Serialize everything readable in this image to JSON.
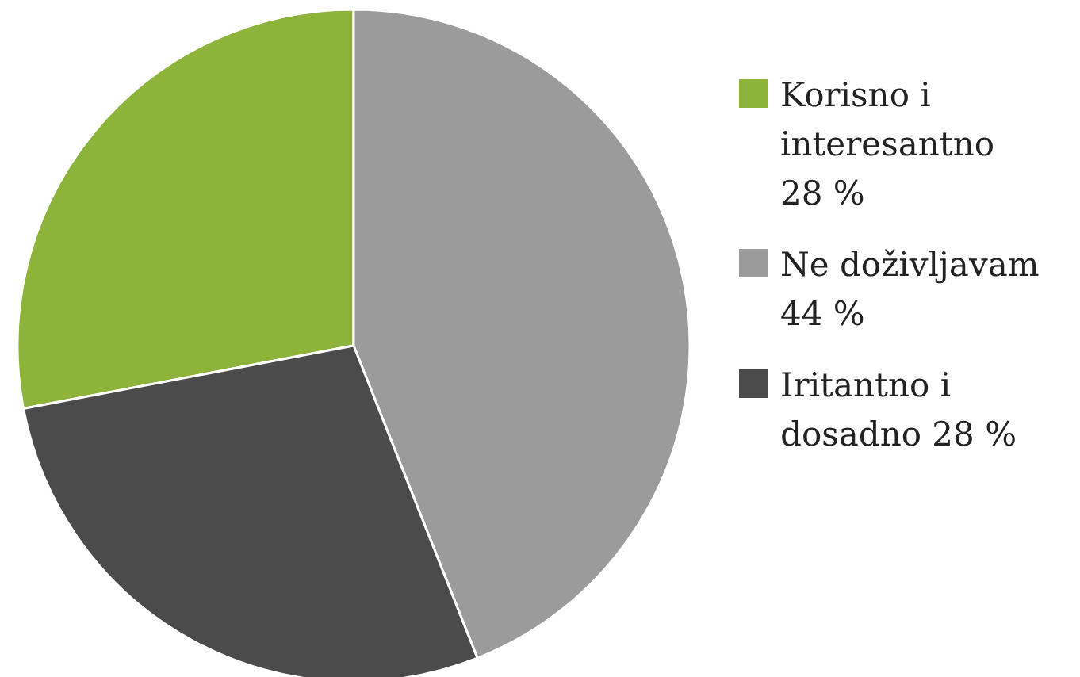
{
  "chart_data": {
    "type": "pie",
    "categories": [
      "Korisno i interesantno",
      "Ne doživljavam",
      "Iritantno i dosadno"
    ],
    "values": [
      28,
      44,
      28
    ],
    "value_labels": [
      "28 %",
      "44 %",
      "28 %"
    ],
    "colors": [
      "#8db33b",
      "#9b9b9b",
      "#4b4b4b"
    ],
    "legend": "right"
  }
}
